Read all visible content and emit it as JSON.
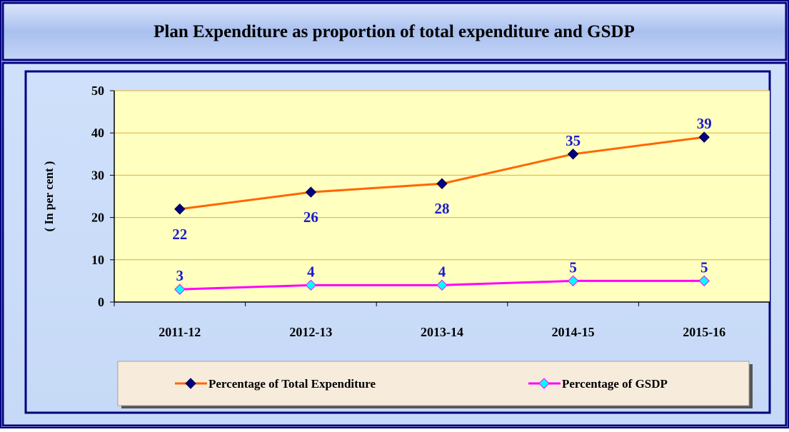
{
  "chart_data": {
    "type": "line",
    "title": "Plan Expenditure as proportion of total expenditure and GSDP",
    "y_label": "( In per cent )",
    "categories": [
      "2011-12",
      "2012-13",
      "2013-14",
      "2014-15",
      "2015-16"
    ],
    "series": [
      {
        "name": "Percentage of Total Expenditure",
        "color": "#ff6600",
        "marker_color": "#000080",
        "values": [
          22,
          26,
          28,
          35,
          39
        ]
      },
      {
        "name": "Percentage of GSDP",
        "color": "#ff00ff",
        "marker_color": "#00ffff",
        "values": [
          3,
          4,
          4,
          5,
          5
        ]
      }
    ],
    "ylim": [
      0,
      50
    ],
    "yticks": [
      0,
      10,
      20,
      30,
      40,
      50
    ],
    "grid": true,
    "legend": "bottom"
  }
}
